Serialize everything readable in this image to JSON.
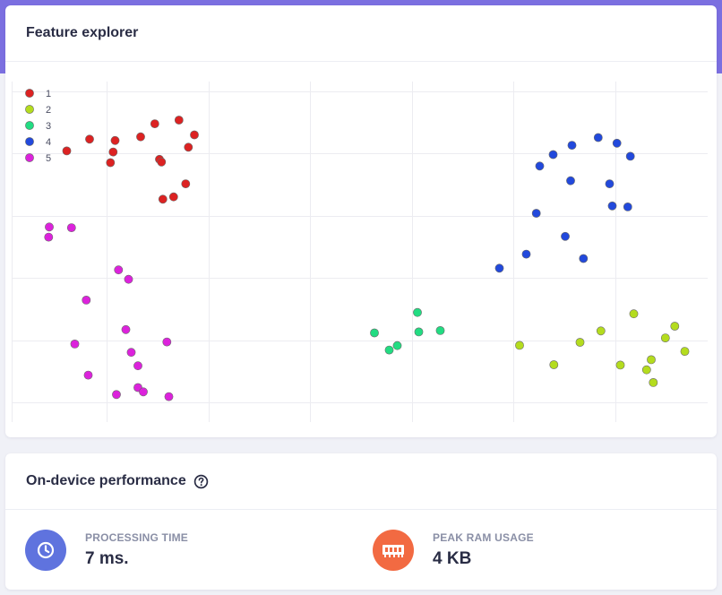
{
  "explorer": {
    "title": "Feature explorer"
  },
  "performance": {
    "title": "On-device performance",
    "metrics": [
      {
        "label": "PROCESSING TIME",
        "value": "7 ms.",
        "icon": "clock-icon",
        "color": "#5f73de"
      },
      {
        "label": "PEAK RAM USAGE",
        "value": "4 KB",
        "icon": "memory-chip-icon",
        "color": "#f26a42"
      }
    ]
  },
  "chart_data": {
    "type": "scatter",
    "legend_position": "top-left",
    "grid": true,
    "xlim": [
      0,
      100
    ],
    "ylim": [
      0,
      100
    ],
    "series": [
      {
        "name": "1",
        "color": "#dc2222",
        "points": [
          [
            6.2,
            80.9
          ],
          [
            9.6,
            84.4
          ],
          [
            12.7,
            77.4
          ],
          [
            13.1,
            80.6
          ],
          [
            13.4,
            84.0
          ],
          [
            17.2,
            85.1
          ],
          [
            19.3,
            89.0
          ],
          [
            20.0,
            78.4
          ],
          [
            20.3,
            77.6
          ],
          [
            20.5,
            66.5
          ],
          [
            22.1,
            67.2
          ],
          [
            22.9,
            90.1
          ],
          [
            23.9,
            71.1
          ],
          [
            24.3,
            82.0
          ],
          [
            25.2,
            85.7
          ]
        ]
      },
      {
        "name": "2",
        "color": "#b4dc1e",
        "points": [
          [
            73.6,
            22.9
          ],
          [
            78.7,
            17.1
          ],
          [
            82.6,
            23.8
          ],
          [
            85.7,
            27.2
          ],
          [
            88.6,
            17.0
          ],
          [
            90.6,
            32.3
          ],
          [
            92.5,
            15.6
          ],
          [
            93.2,
            18.6
          ],
          [
            93.5,
            11.8
          ],
          [
            95.3,
            25.1
          ],
          [
            96.7,
            28.6
          ],
          [
            98.2,
            21.1
          ]
        ]
      },
      {
        "name": "3",
        "color": "#22dc82",
        "points": [
          [
            52.0,
            26.6
          ],
          [
            54.2,
            21.5
          ],
          [
            55.4,
            22.8
          ],
          [
            58.4,
            32.7
          ],
          [
            58.6,
            26.9
          ],
          [
            61.8,
            27.3
          ]
        ]
      },
      {
        "name": "4",
        "color": "#2249dc",
        "points": [
          [
            70.6,
            45.9
          ],
          [
            74.6,
            50.1
          ],
          [
            76.1,
            62.3
          ],
          [
            76.6,
            76.4
          ],
          [
            78.6,
            79.8
          ],
          [
            80.4,
            55.4
          ],
          [
            81.2,
            72.0
          ],
          [
            81.4,
            82.6
          ],
          [
            83.1,
            48.8
          ],
          [
            85.3,
            84.9
          ],
          [
            87.0,
            71.1
          ],
          [
            87.4,
            64.5
          ],
          [
            88.1,
            83.2
          ],
          [
            89.7,
            64.2
          ],
          [
            90.1,
            79.3
          ]
        ]
      },
      {
        "name": "5",
        "color": "#dc22dc",
        "points": [
          [
            3.5,
            55.2
          ],
          [
            3.6,
            58.2
          ],
          [
            6.9,
            58.0
          ],
          [
            7.4,
            23.3
          ],
          [
            9.1,
            36.4
          ],
          [
            9.4,
            14.0
          ],
          [
            13.6,
            8.2
          ],
          [
            13.9,
            45.4
          ],
          [
            15.0,
            27.6
          ],
          [
            15.4,
            42.6
          ],
          [
            15.8,
            20.8
          ],
          [
            16.8,
            16.8
          ],
          [
            16.8,
            10.3
          ],
          [
            17.6,
            9.0
          ],
          [
            21.1,
            23.9
          ],
          [
            21.4,
            7.6
          ]
        ]
      }
    ]
  }
}
